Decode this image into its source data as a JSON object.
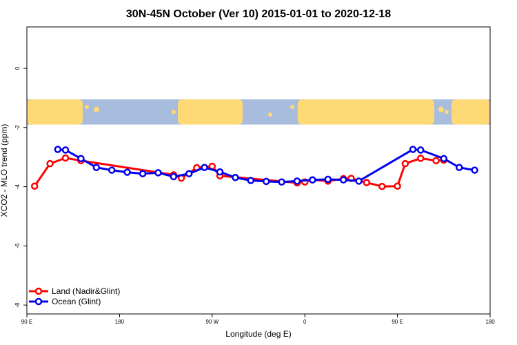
{
  "colors": {
    "land": "#ff0000",
    "ocean": "#0000ee",
    "ocean_strip": "#a8bddd",
    "land_strip": "#ffd976"
  },
  "chart_data": {
    "type": "line",
    "title": "30N-45N October (Ver 10)   2015-01-01 to 2020-12-18",
    "xlabel": "Longitude (deg E)",
    "ylabel": "XCO2 - MLO trend (ppm)",
    "xlim": [
      -90,
      270
    ],
    "ylim": [
      -8.3,
      1.4
    ],
    "x_ticks": [
      {
        "value": -90,
        "label": "90 E"
      },
      {
        "value": -18,
        "label": "180"
      },
      {
        "value": 54,
        "label": "90 W"
      },
      {
        "value": 126,
        "label": "0"
      },
      {
        "value": 198,
        "label": "90 E"
      },
      {
        "value": 270,
        "label": "180"
      }
    ],
    "y_ticks": [
      {
        "value": 0,
        "label": "0"
      },
      {
        "value": -2,
        "label": "-2"
      },
      {
        "value": -4,
        "label": "-4"
      },
      {
        "value": -6,
        "label": "-6"
      },
      {
        "value": -8,
        "label": "-8"
      }
    ],
    "map_strip": {
      "y_top": -1.05,
      "y_bottom": -1.9
    },
    "grid": false,
    "legend_position": "bottom-left",
    "series": [
      {
        "name": "Land (Nadir&Glint)",
        "color": "#ff0000",
        "x": [
          -84,
          -72,
          -60,
          -48,
          24,
          30,
          42,
          54,
          60,
          120,
          126,
          132,
          144,
          156,
          162,
          174,
          186,
          198,
          204,
          216,
          228,
          234
        ],
        "y": [
          -3.98,
          -3.22,
          -3.03,
          -3.12,
          -3.6,
          -3.71,
          -3.36,
          -3.31,
          -3.63,
          -3.87,
          -3.84,
          -3.77,
          -3.81,
          -3.73,
          -3.72,
          -3.86,
          -3.99,
          -3.98,
          -3.22,
          -3.04,
          -3.12,
          -3.1
        ]
      },
      {
        "name": "Ocean (Glint)",
        "color": "#0000ee",
        "x": [
          -66,
          -60,
          -48,
          -36,
          -24,
          -12,
          0,
          12,
          24,
          36,
          48,
          60,
          72,
          84,
          96,
          108,
          120,
          132,
          144,
          156,
          168,
          210,
          216,
          234,
          246,
          258
        ],
        "y": [
          -2.74,
          -2.76,
          -3.05,
          -3.35,
          -3.44,
          -3.51,
          -3.56,
          -3.53,
          -3.66,
          -3.56,
          -3.35,
          -3.5,
          -3.69,
          -3.79,
          -3.82,
          -3.84,
          -3.81,
          -3.77,
          -3.75,
          -3.77,
          -3.81,
          -2.74,
          -2.76,
          -3.05,
          -3.35,
          -3.44
        ]
      }
    ]
  }
}
